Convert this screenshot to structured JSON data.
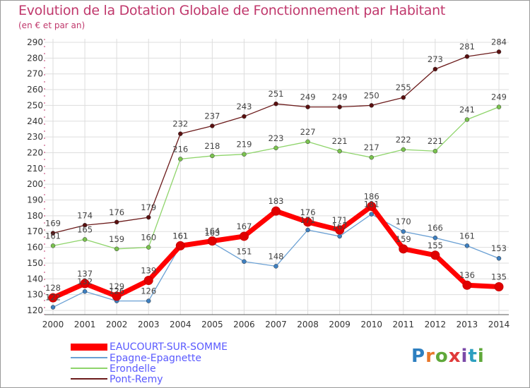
{
  "title": "Evolution de la Dotation Globale de Fonctionnement par Habitant",
  "subtitle": "(en € et par an)",
  "logo": {
    "text": "Proxiti",
    "letters": [
      "P",
      "r",
      "o",
      "x",
      "i",
      "t",
      "i"
    ]
  },
  "colors": {
    "title": "#c0386c",
    "grid": "#dddddd",
    "axis": "#555555",
    "tick_label": "#333333",
    "legend_text": "#5a5aff"
  },
  "chart_data": {
    "type": "line",
    "title": "Evolution de la Dotation Globale de Fonctionnement par Habitant",
    "subtitle": "(en € et par an)",
    "xlabel": "",
    "ylabel": "",
    "x": [
      "2000",
      "2001",
      "2002",
      "2003",
      "2004",
      "2005",
      "2006",
      "2007",
      "2008",
      "2009",
      "2010",
      "2011",
      "2012",
      "2013",
      "2014"
    ],
    "ylim": [
      120,
      290
    ],
    "yticks": [
      120,
      130,
      140,
      150,
      160,
      170,
      180,
      190,
      200,
      210,
      220,
      230,
      240,
      250,
      260,
      270,
      280,
      290
    ],
    "grid": true,
    "legend_position": "bottom-left",
    "series": [
      {
        "name": "Pont-Remy",
        "color": "#6b1a1a",
        "marker": "#5a1010",
        "width": 1.3,
        "values": [
          169,
          174,
          176,
          179,
          232,
          237,
          243,
          251,
          249,
          249,
          250,
          255,
          273,
          281,
          284
        ],
        "labels": [
          "169",
          "174",
          "176",
          "179",
          "232",
          "237",
          "243",
          "251",
          "249",
          "249",
          "250",
          "255",
          "273",
          "281",
          "284"
        ]
      },
      {
        "name": "Erondelle",
        "color": "#8ed46a",
        "marker": "#7ac24f",
        "width": 1.3,
        "values": [
          161,
          165,
          159,
          160,
          216,
          218,
          219,
          223,
          227,
          221,
          217,
          222,
          221,
          241,
          249
        ],
        "labels": [
          "161",
          "165",
          "159",
          "160",
          "216",
          "218",
          "219",
          "223",
          "227",
          "221",
          "217",
          "222",
          "221",
          "241",
          "249"
        ]
      },
      {
        "name": "Epagne-Epagnette",
        "color": "#6aa0d4",
        "marker": "#3d7fc0",
        "width": 1.3,
        "values": [
          122,
          132,
          126,
          126,
          161,
          163,
          151,
          148,
          171,
          167,
          181,
          170,
          166,
          161,
          153
        ],
        "labels": [
          "122",
          "132",
          "126",
          "126",
          "161",
          "163",
          "151",
          "148",
          "171",
          "167",
          "181",
          "170",
          "166",
          "161",
          "153"
        ]
      },
      {
        "name": "EAUCOURT-SUR-SOMME",
        "color": "#ff0000",
        "marker": "#e00000",
        "width": 7,
        "values": [
          128,
          137,
          129,
          139,
          161,
          164,
          167,
          183,
          176,
          171,
          186,
          159,
          155,
          136,
          135
        ],
        "labels": [
          "128",
          "137",
          "129",
          "139",
          "161",
          "164",
          "167",
          "183",
          "176",
          "171",
          "186",
          "159",
          "155",
          "136",
          "135"
        ]
      }
    ],
    "legend": [
      "EAUCOURT-SUR-SOMME",
      "Epagne-Epagnette",
      "Erondelle",
      "Pont-Remy"
    ]
  }
}
